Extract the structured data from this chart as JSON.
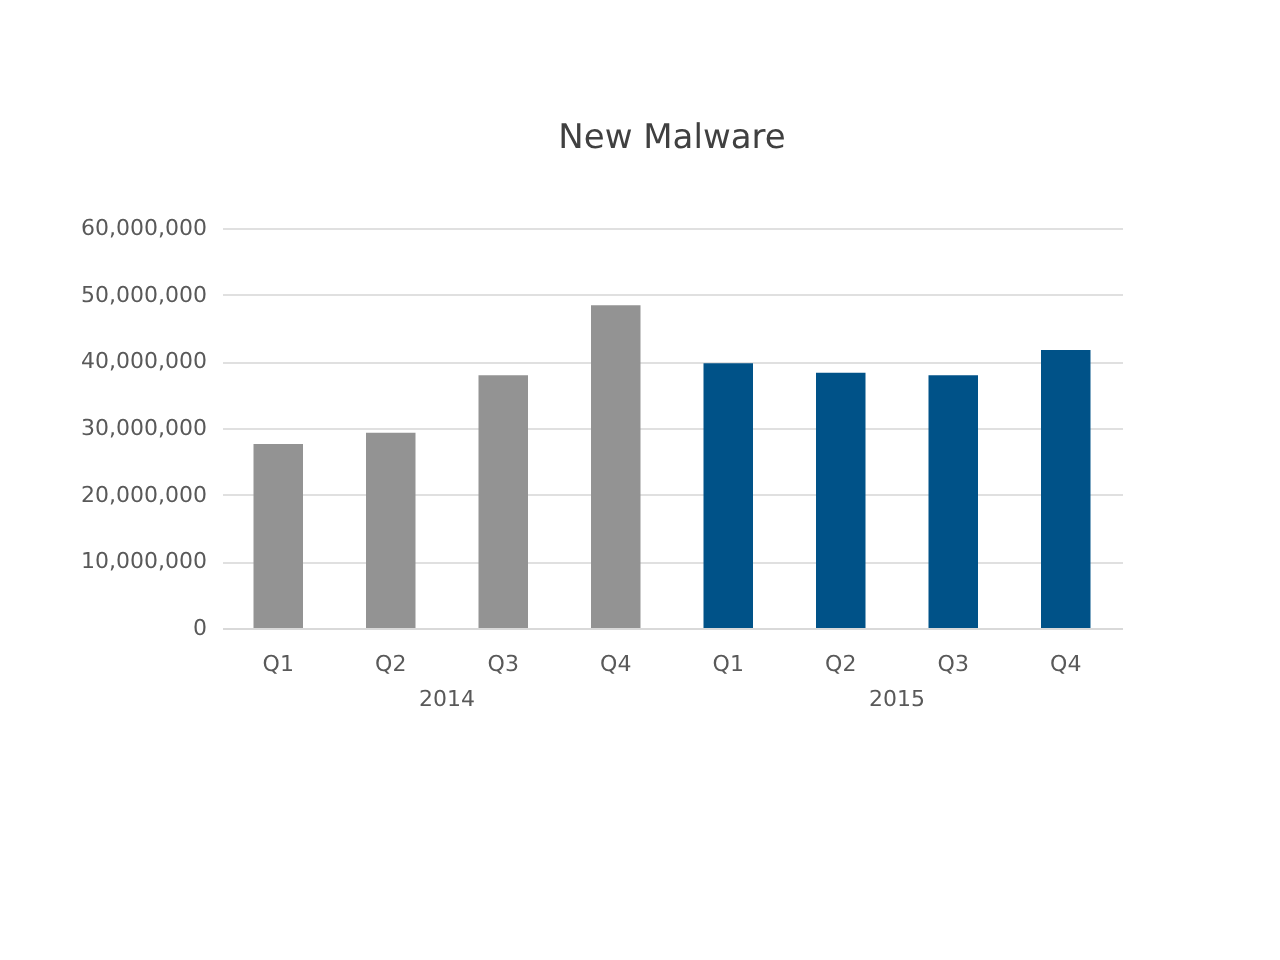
{
  "chart_data": {
    "type": "bar",
    "title": "New Malware",
    "categories": [
      "Q1",
      "Q2",
      "Q3",
      "Q4",
      "Q1",
      "Q2",
      "Q3",
      "Q4"
    ],
    "series": [
      {
        "color": "#939393",
        "values": [
          27600000,
          29300000,
          37900000,
          48400000,
          null,
          null,
          null,
          null
        ]
      },
      {
        "color": "#005288",
        "values": [
          null,
          null,
          null,
          null,
          39700000,
          38300000,
          37900000,
          41700000
        ]
      }
    ],
    "annotations": [
      "2014",
      "2015"
    ],
    "ylim": [
      0,
      60000000
    ],
    "yticks": [
      0,
      {
        "value": 10000000,
        "label": "10,000,000"
      },
      {
        "value": 20000000,
        "label": "20,000,000"
      },
      {
        "value": 30000000,
        "label": "30,000,000"
      },
      {
        "value": 40000000,
        "label": "40,000,000"
      },
      {
        "value": 50000000,
        "label": "50,000,000"
      },
      {
        "value": 60000000,
        "label": "60,000,000"
      }
    ],
    "grid": "y",
    "legend": false
  }
}
